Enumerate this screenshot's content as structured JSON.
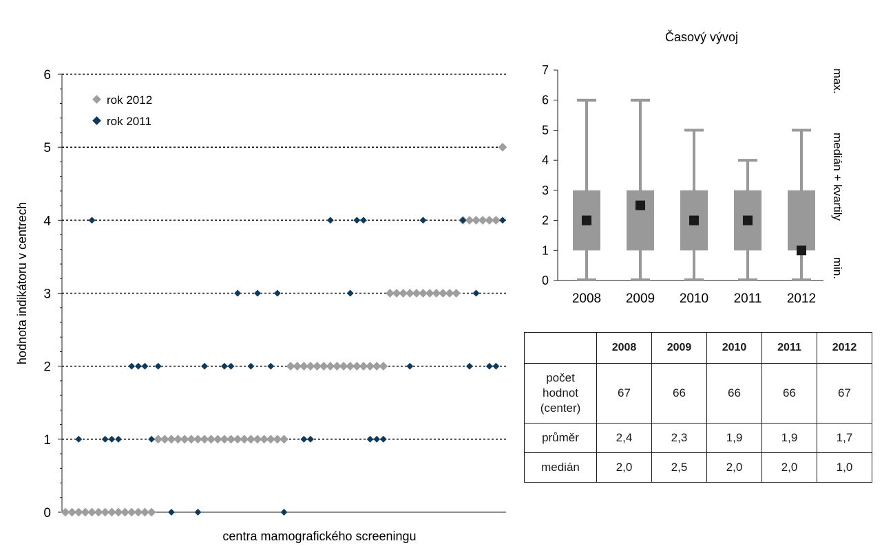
{
  "chart_data": [
    {
      "type": "scatter",
      "title": "",
      "xlabel": "centra mamografického screeningu",
      "ylabel": "hodnota indikátoru v centrech",
      "ylim": [
        0,
        6
      ],
      "yticks": [
        0,
        1,
        2,
        3,
        4,
        5,
        6
      ],
      "grid": "horizontal dotted",
      "legend_position": "top-left",
      "colors": {
        "rok 2012": "#9e9e9e",
        "rok 2011": "#0d3a5c"
      },
      "x": [
        1,
        2,
        3,
        4,
        5,
        6,
        7,
        8,
        9,
        10,
        11,
        12,
        13,
        14,
        15,
        16,
        17,
        18,
        19,
        20,
        21,
        22,
        23,
        24,
        25,
        26,
        27,
        28,
        29,
        30,
        31,
        32,
        33,
        34,
        35,
        36,
        37,
        38,
        39,
        40,
        41,
        42,
        43,
        44,
        45,
        46,
        47,
        48,
        49,
        50,
        51,
        52,
        53,
        54,
        55,
        56,
        57,
        58,
        59,
        60,
        61,
        62,
        63,
        64,
        65,
        66,
        67
      ],
      "series": [
        {
          "name": "rok 2012",
          "values": [
            0,
            0,
            0,
            0,
            0,
            0,
            0,
            0,
            0,
            0,
            0,
            0,
            0,
            0,
            1,
            1,
            1,
            1,
            1,
            1,
            1,
            1,
            1,
            1,
            1,
            1,
            1,
            1,
            1,
            1,
            1,
            1,
            1,
            1,
            2,
            2,
            2,
            2,
            2,
            2,
            2,
            2,
            2,
            2,
            2,
            2,
            2,
            2,
            2,
            3,
            3,
            3,
            3,
            3,
            3,
            3,
            3,
            3,
            3,
            3,
            4,
            4,
            4,
            4,
            4,
            4,
            5
          ]
        },
        {
          "name": "rok 2011",
          "points": [
            [
              3,
              1
            ],
            [
              5,
              4
            ],
            [
              7,
              1
            ],
            [
              8,
              1
            ],
            [
              9,
              1
            ],
            [
              11,
              2
            ],
            [
              12,
              2
            ],
            [
              13,
              2
            ],
            [
              14,
              1
            ],
            [
              15,
              2
            ],
            [
              17,
              0
            ],
            [
              21,
              0
            ],
            [
              22,
              2
            ],
            [
              25,
              2
            ],
            [
              26,
              2
            ],
            [
              27,
              3
            ],
            [
              29,
              2
            ],
            [
              30,
              3
            ],
            [
              32,
              2
            ],
            [
              33,
              3
            ],
            [
              34,
              0
            ],
            [
              37,
              1
            ],
            [
              38,
              1
            ],
            [
              41,
              4
            ],
            [
              44,
              3
            ],
            [
              45,
              4
            ],
            [
              46,
              4
            ],
            [
              47,
              1
            ],
            [
              48,
              1
            ],
            [
              49,
              1
            ],
            [
              53,
              2
            ],
            [
              55,
              4
            ],
            [
              61,
              4
            ],
            [
              62,
              2
            ],
            [
              63,
              3
            ],
            [
              65,
              2
            ],
            [
              66,
              2
            ],
            [
              67,
              4
            ]
          ]
        }
      ]
    },
    {
      "type": "box",
      "title": "Časový vývoj",
      "categories": [
        "2008",
        "2009",
        "2010",
        "2011",
        "2012"
      ],
      "ylim": [
        0,
        7
      ],
      "yticks": [
        0,
        1,
        2,
        3,
        4,
        5,
        6,
        7
      ],
      "min": [
        0,
        0,
        0,
        0,
        0
      ],
      "q1": [
        1,
        1,
        1,
        1,
        1
      ],
      "median": [
        2.0,
        2.5,
        2.0,
        2.0,
        1.0
      ],
      "q3": [
        3,
        3,
        3,
        3,
        3
      ],
      "max": [
        6,
        6,
        5,
        4,
        5
      ],
      "side_labels": [
        "min.",
        "medián + kvartily",
        "max."
      ],
      "colors": {
        "box": "#999999",
        "median": "#1a1a1a"
      }
    }
  ],
  "table": {
    "headers": [
      "",
      "2008",
      "2009",
      "2010",
      "2011",
      "2012"
    ],
    "rows": [
      {
        "label": "počet hodnot (center)",
        "label_lines": [
          "počet",
          "hodnot",
          "(center)"
        ],
        "values": [
          "67",
          "66",
          "66",
          "66",
          "67"
        ]
      },
      {
        "label": "průměr",
        "values": [
          "2,4",
          "2,3",
          "1,9",
          "1,9",
          "1,7"
        ]
      },
      {
        "label": "medián",
        "values": [
          "2,0",
          "2,5",
          "2,0",
          "2,0",
          "1,0"
        ]
      }
    ]
  }
}
